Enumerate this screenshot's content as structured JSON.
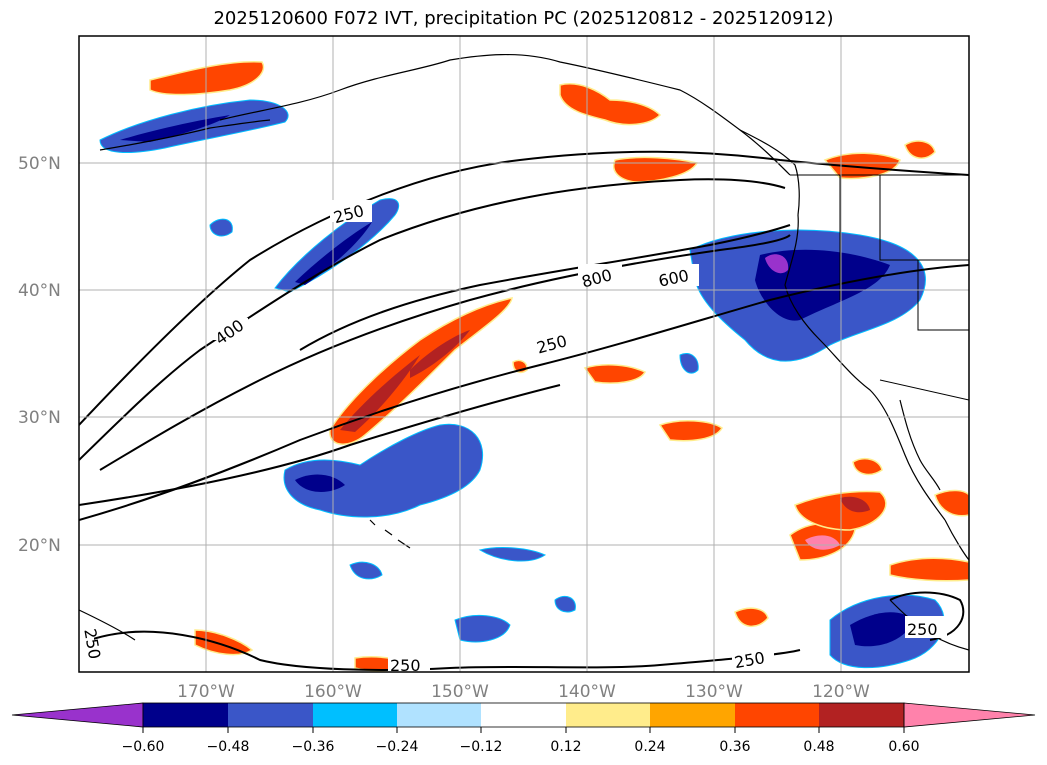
{
  "title": "2025120600 F072 IVT, precipitation PC (2025120812 - 2025120912)",
  "colors": {
    "frame": "#000000",
    "grid": "#b0b0b0",
    "tick_text": "#808080",
    "neg_levels": [
      "#9932cc",
      "#00008b",
      "#3a56c8",
      "#00bfff",
      "#b0e2ff"
    ],
    "pos_levels": [
      "#ffec8b",
      "#ffa500",
      "#ff4500",
      "#b22222",
      "#ff82ab"
    ]
  },
  "map": {
    "lat_labels": [
      "50°N",
      "40°N",
      "30°N",
      "20°N"
    ],
    "lon_labels": [
      "170°W",
      "160°W",
      "150°W",
      "140°W",
      "130°W",
      "120°W"
    ],
    "contour_labels": [
      "250",
      "400",
      "800",
      "600",
      "250",
      "250",
      "250",
      "250",
      "250"
    ]
  },
  "colorbar": {
    "tick_labels": [
      "−0.60",
      "−0.48",
      "−0.36",
      "−0.24",
      "−0.12",
      "0.12",
      "0.24",
      "0.36",
      "0.48",
      "0.60"
    ],
    "segment_colors": [
      "#9932cc",
      "#00008b",
      "#3a56c8",
      "#00bfff",
      "#b0e2ff",
      "#ffffff",
      "#ffec8b",
      "#ffa500",
      "#ff4500",
      "#b22222",
      "#ff82ab",
      "#ff82ab"
    ]
  }
}
